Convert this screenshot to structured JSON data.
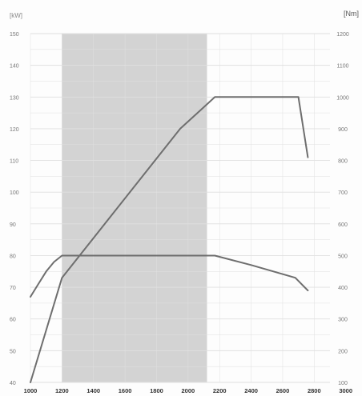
{
  "chart_data": {
    "type": "line",
    "y_left_label": "[kW]",
    "y_right_label": "[Nm]",
    "x_ticks": [
      "1000",
      "1200",
      "1400",
      "1600",
      "1800",
      "2000",
      "2200",
      "2400",
      "2600",
      "2800",
      "3000"
    ],
    "y_left_ticks": [
      "40",
      "50",
      "60",
      "70",
      "80",
      "90",
      "100",
      "110",
      "120",
      "130",
      "140",
      "150"
    ],
    "y_right_ticks": [
      "100",
      "200",
      "300",
      "400",
      "500",
      "600",
      "700",
      "800",
      "900",
      "1000",
      "1100",
      "1200"
    ],
    "xlim": [
      1000,
      2900
    ],
    "y_left_lim": [
      40,
      150
    ],
    "y_right_lim": [
      100,
      1200
    ],
    "grid": true,
    "shaded_band": {
      "x_start": 1200,
      "x_end": 2120
    },
    "series": [
      {
        "axis": "left",
        "color": "#6e6e6e",
        "points": [
          [
            1000,
            40
          ],
          [
            1200,
            73
          ],
          [
            1950,
            120
          ],
          [
            2170,
            130
          ],
          [
            2700,
            130
          ],
          [
            2760,
            111
          ]
        ]
      },
      {
        "axis": "right",
        "color": "#6e6e6e",
        "points": [
          [
            1000,
            370
          ],
          [
            1050,
            410
          ],
          [
            1100,
            450
          ],
          [
            1150,
            480
          ],
          [
            1200,
            500
          ],
          [
            2170,
            500
          ],
          [
            2400,
            470
          ],
          [
            2680,
            430
          ],
          [
            2760,
            390
          ]
        ]
      }
    ]
  },
  "colors": {
    "band": "#d3d3d3",
    "grid": "#e0e0e0",
    "tick_text": "#777777",
    "bottom_tick_text": "#333333",
    "axis_label": "#888888",
    "background": "#fdfdfd"
  }
}
